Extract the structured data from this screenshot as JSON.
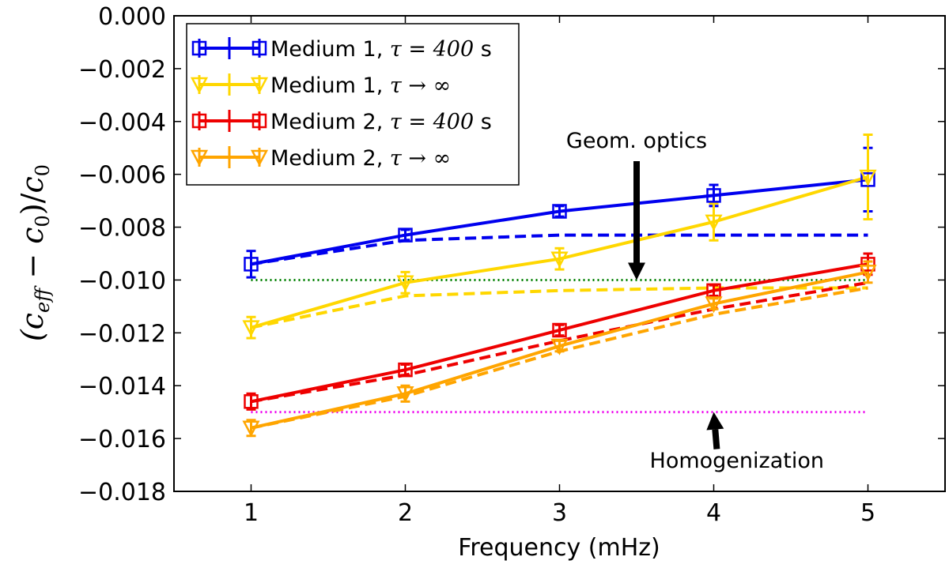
{
  "chart_data": {
    "type": "line",
    "xlabel": "Frequency (mHz)",
    "ylabel": "(c_eff − c_0)/c_0",
    "ylabel_parts": {
      "open": "(",
      "c": "c",
      "sub_eff": "eff",
      "minus": " − ",
      "c2": "c",
      "sub_0": "0",
      "close": ")/",
      "c3": "c",
      "sub_0b": "0"
    },
    "xlim": [
      0.5,
      5.5
    ],
    "ylim": [
      -0.018,
      0.0
    ],
    "xticks": [
      1,
      2,
      3,
      4,
      5
    ],
    "xtick_labels": [
      "1",
      "2",
      "3",
      "4",
      "5"
    ],
    "yticks": [
      0.0,
      -0.002,
      -0.004,
      -0.006,
      -0.008,
      -0.01,
      -0.012,
      -0.014,
      -0.016,
      -0.018
    ],
    "ytick_labels": [
      "0.000",
      "−0.002",
      "−0.004",
      "−0.006",
      "−0.008",
      "−0.010",
      "−0.012",
      "−0.014",
      "−0.016",
      "−0.018"
    ],
    "legend_position": "upper-left",
    "x": [
      1,
      2,
      3,
      4,
      5
    ],
    "series": [
      {
        "name": "Medium 1, τ = 400 s",
        "legend_prefix": "Medium 1, ",
        "legend_math": "τ = 400",
        "legend_suffix": " s",
        "color": "#0000ee",
        "marker": "square",
        "values": [
          -0.0094,
          -0.0083,
          -0.0074,
          -0.0068,
          -0.0062
        ],
        "errors": [
          0.0005,
          0.0002,
          0.0002,
          0.0004,
          0.0012
        ],
        "dashed_values": [
          -0.0094,
          -0.0085,
          -0.0083,
          -0.0083,
          -0.0083
        ]
      },
      {
        "name": "Medium 1, τ → ∞",
        "legend_prefix": "Medium 1, ",
        "legend_math": "τ → ∞",
        "legend_suffix": "",
        "color": "#ffd700",
        "marker": "triangle-down",
        "values": [
          -0.0118,
          -0.0101,
          -0.0092,
          -0.0078,
          -0.0061
        ],
        "errors": [
          0.0004,
          0.0004,
          0.0004,
          0.0007,
          0.0016
        ],
        "dashed_values": [
          -0.0118,
          -0.0106,
          -0.0104,
          -0.0103,
          -0.0103
        ]
      },
      {
        "name": "Medium 2, τ = 400 s",
        "legend_prefix": "Medium 2, ",
        "legend_math": "τ = 400",
        "legend_suffix": " s",
        "color": "#ee0000",
        "marker": "square",
        "values": [
          -0.0146,
          -0.0134,
          -0.0119,
          -0.0104,
          -0.0094
        ],
        "errors": [
          0.0003,
          0.0002,
          0.0002,
          0.0002,
          0.0004
        ],
        "dashed_values": [
          -0.0146,
          -0.0136,
          -0.0123,
          -0.0111,
          -0.0101
        ]
      },
      {
        "name": "Medium 2, τ → ∞",
        "legend_prefix": "Medium 2, ",
        "legend_math": "τ → ∞",
        "legend_suffix": "",
        "color": "#ffa500",
        "marker": "triangle-down",
        "values": [
          -0.0156,
          -0.0143,
          -0.0125,
          -0.0109,
          -0.0097
        ],
        "errors": [
          0.0003,
          0.0003,
          0.0002,
          0.0002,
          0.0004
        ],
        "dashed_values": [
          -0.0156,
          -0.0144,
          -0.0127,
          -0.0113,
          -0.0103
        ]
      }
    ],
    "reference_lines": [
      {
        "name": "Geom. optics",
        "y": -0.01,
        "x_range": [
          1,
          5
        ],
        "color": "#008000",
        "style": "dotted"
      },
      {
        "name": "Homogenization",
        "y": -0.015,
        "x_range": [
          1,
          5
        ],
        "color": "#ee00ee",
        "style": "dotted"
      }
    ],
    "annotations": [
      {
        "text": "Geom. optics",
        "arrow_from": [
          3.5,
          -0.0055
        ],
        "arrow_to": [
          3.5,
          -0.01
        ],
        "text_at": [
          3.5,
          -0.0047
        ]
      },
      {
        "text": "Homogenization",
        "arrow_from": [
          4.02,
          -0.0164
        ],
        "arrow_to": [
          4.0,
          -0.015
        ],
        "text_at": [
          4.15,
          -0.0168
        ]
      }
    ]
  }
}
